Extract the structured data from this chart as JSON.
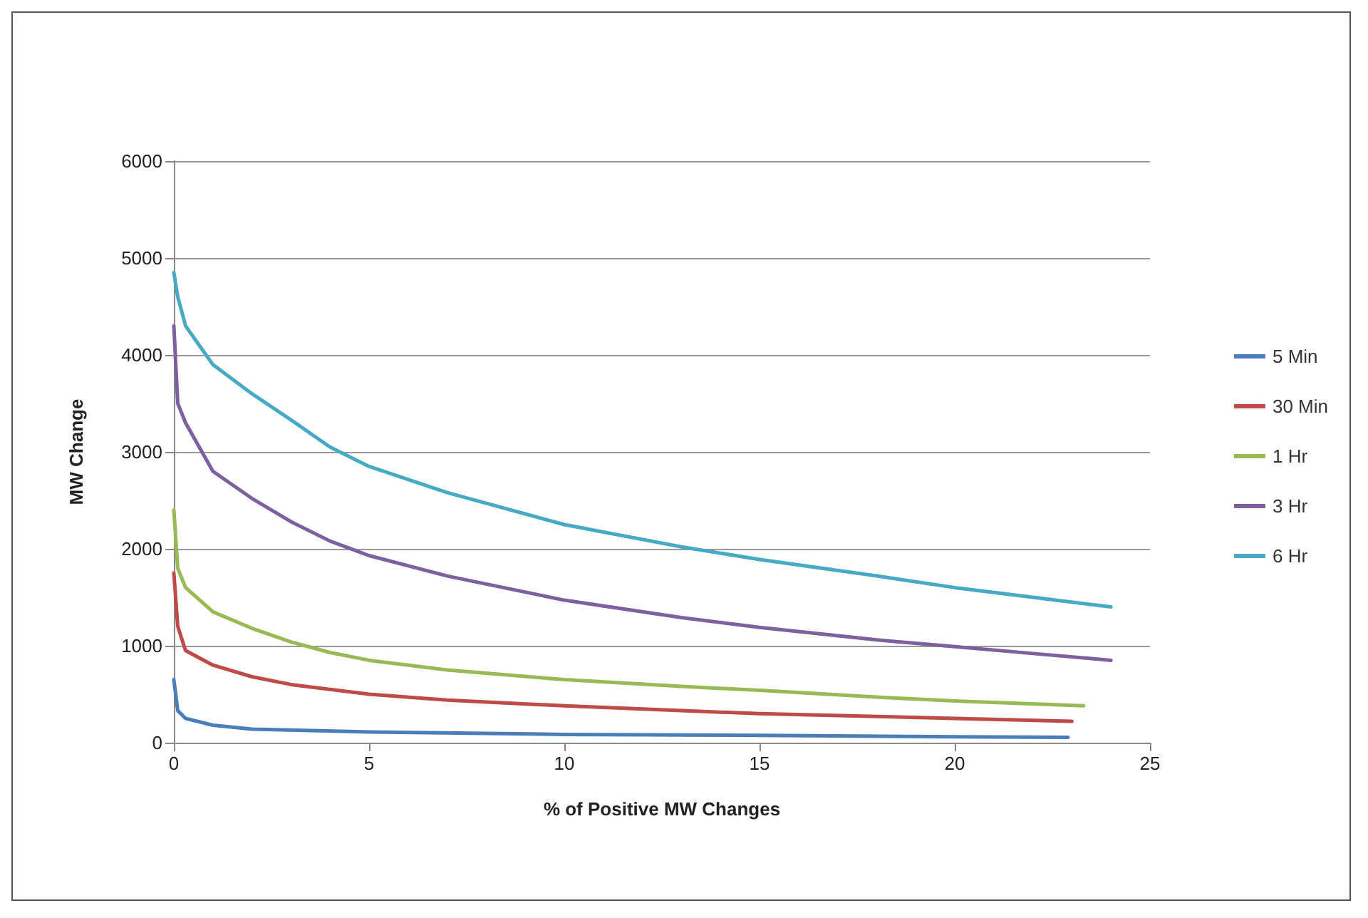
{
  "chart_data": {
    "type": "line",
    "xlabel": "% of Positive MW Changes",
    "ylabel": "MW Change",
    "xlim": [
      0,
      25
    ],
    "xticks": [
      0,
      5,
      10,
      15,
      20,
      25
    ],
    "ylim": [
      0,
      6000
    ],
    "yticks": [
      0,
      1000,
      2000,
      3000,
      4000,
      5000,
      6000
    ],
    "grid": "y",
    "legend": "right",
    "marker": "none",
    "line_style": "solid",
    "series": [
      {
        "name": "5 Min",
        "color": "#4a7ebb",
        "x": [
          0,
          0.1,
          0.3,
          1,
          2,
          5,
          10,
          15,
          20,
          22.9
        ],
        "values": [
          650,
          330,
          250,
          180,
          140,
          110,
          85,
          75,
          60,
          55
        ]
      },
      {
        "name": "30 Min",
        "color": "#be4b48",
        "x": [
          0,
          0.1,
          0.3,
          1,
          2,
          3,
          5,
          7,
          10,
          13,
          15,
          18,
          20,
          23
        ],
        "values": [
          1750,
          1200,
          950,
          800,
          680,
          600,
          500,
          440,
          380,
          330,
          300,
          270,
          250,
          220
        ]
      },
      {
        "name": "1 Hr",
        "color": "#98b954",
        "x": [
          0,
          0.1,
          0.3,
          1,
          2,
          3,
          4,
          5,
          7,
          10,
          13,
          15,
          18,
          20,
          23.3
        ],
        "values": [
          2400,
          1800,
          1600,
          1350,
          1180,
          1040,
          930,
          850,
          750,
          650,
          580,
          540,
          470,
          430,
          380
        ]
      },
      {
        "name": "3 Hr",
        "color": "#7d60a0",
        "x": [
          0,
          0.1,
          0.3,
          1,
          2,
          3,
          4,
          5,
          7,
          10,
          13,
          15,
          18,
          20,
          22,
          24
        ],
        "values": [
          4300,
          3500,
          3300,
          2800,
          2520,
          2280,
          2080,
          1930,
          1720,
          1470,
          1290,
          1190,
          1060,
          990,
          920,
          850
        ]
      },
      {
        "name": "6 Hr",
        "color": "#46aac5",
        "x": [
          0,
          0.1,
          0.3,
          1,
          2,
          3,
          4,
          5,
          7,
          10,
          13,
          15,
          18,
          20,
          22,
          24
        ],
        "values": [
          4850,
          4600,
          4300,
          3900,
          3600,
          3330,
          3050,
          2850,
          2580,
          2250,
          2020,
          1890,
          1720,
          1600,
          1500,
          1400
        ]
      }
    ]
  }
}
